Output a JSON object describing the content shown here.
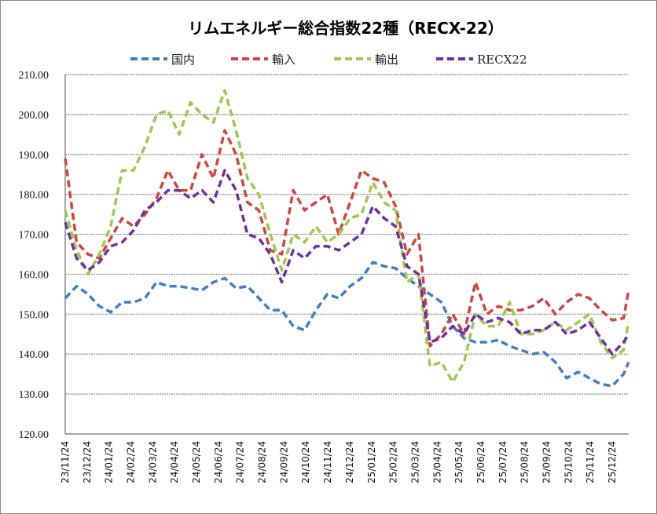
{
  "chart_data": {
    "type": "line",
    "title": "リムエネルギー総合指数22種（RECX-22）",
    "xlabel": "",
    "ylabel": "",
    "ylim": [
      120,
      210
    ],
    "yticks": [
      "120.00",
      "130.00",
      "140.00",
      "150.00",
      "160.00",
      "170.00",
      "180.00",
      "190.00",
      "200.00",
      "210.00"
    ],
    "ytick_values": [
      120,
      130,
      140,
      150,
      160,
      170,
      180,
      190,
      200,
      210
    ],
    "xticks": [
      "23/11/24",
      "23/12/24",
      "24/01/24",
      "24/02/24",
      "24/03/24",
      "24/04/24",
      "24/05/24",
      "24/06/24",
      "24/07/24",
      "24/08/24",
      "24/09/24",
      "24/10/24",
      "24/11/24",
      "24/12/24",
      "25/01/24",
      "25/02/24",
      "25/03/24",
      "25/04/24",
      "25/05/24",
      "25/06/24",
      "25/07/24",
      "25/08/24",
      "25/09/24",
      "25/10/24",
      "25/11/24",
      "25/12/24"
    ],
    "xlim": [
      0,
      25.75
    ],
    "grid": true,
    "legend_position": "top",
    "x": [
      0,
      0.52,
      1.04,
      1.56,
      2.08,
      2.6,
      3.12,
      3.65,
      4.17,
      4.69,
      5.21,
      5.73,
      6.25,
      6.77,
      7.29,
      7.81,
      8.33,
      8.85,
      9.37,
      9.9,
      10.42,
      10.94,
      11.46,
      11.98,
      12.5,
      13.02,
      13.54,
      14.06,
      14.58,
      15.1,
      15.62,
      16.15,
      16.67,
      17.19,
      17.71,
      18.23,
      18.75,
      19.27,
      19.79,
      20.31,
      20.83,
      21.35,
      21.87,
      22.4,
      22.92,
      23.44,
      23.96,
      24.48,
      25.0,
      25.52,
      25.75
    ],
    "series": [
      {
        "name": "国内",
        "color": "#3F7FC7",
        "values": [
          154,
          157,
          155,
          152,
          150.5,
          153,
          153,
          154,
          158,
          157,
          157,
          156.5,
          156,
          158,
          159,
          156.5,
          157,
          154,
          151,
          151,
          147,
          146,
          151,
          155,
          154,
          157,
          159,
          163,
          162,
          161.5,
          159,
          157,
          155,
          153,
          147,
          144,
          143,
          143,
          143.5,
          142,
          141,
          140,
          140.5,
          138,
          134,
          135.5,
          134,
          132.5,
          132,
          135,
          138
        ]
      },
      {
        "name": "輸入",
        "color": "#D0453D",
        "values": [
          189,
          168,
          165,
          164,
          169,
          174,
          172,
          175,
          179,
          186,
          181,
          181,
          190,
          184,
          196,
          190,
          178,
          176,
          166,
          165,
          181,
          176,
          178,
          180,
          170,
          178,
          186,
          184,
          183,
          177,
          165,
          170,
          142,
          145,
          150,
          145,
          158,
          150,
          152,
          151,
          151,
          152,
          154,
          150,
          153,
          155,
          154,
          151,
          148.5,
          149,
          156
        ]
      },
      {
        "name": "輸出",
        "color": "#9DC94C",
        "values": [
          176,
          166,
          160,
          165,
          172,
          186,
          186,
          192,
          200,
          201,
          195,
          203,
          200,
          198,
          206,
          196,
          184,
          180,
          170,
          161,
          170,
          168,
          172,
          168,
          170,
          174,
          175,
          183,
          178,
          176,
          158,
          160,
          137,
          138,
          133,
          138,
          150,
          147,
          147,
          153,
          145,
          145,
          146,
          148,
          146,
          148,
          150,
          143,
          139,
          141,
          148
        ]
      },
      {
        "name": "RECX22",
        "color": "#7030A0",
        "values": [
          173,
          164,
          161,
          163,
          167,
          168,
          171,
          176,
          178,
          181,
          181,
          179,
          181,
          178,
          186,
          181,
          170,
          169,
          165,
          158,
          166,
          164,
          167,
          167,
          166,
          168,
          170,
          177,
          174,
          172,
          162,
          160,
          143,
          144,
          147,
          145,
          150,
          148,
          149,
          148,
          145,
          146,
          146,
          148,
          145,
          146,
          148,
          144,
          140,
          143,
          145
        ]
      }
    ]
  }
}
